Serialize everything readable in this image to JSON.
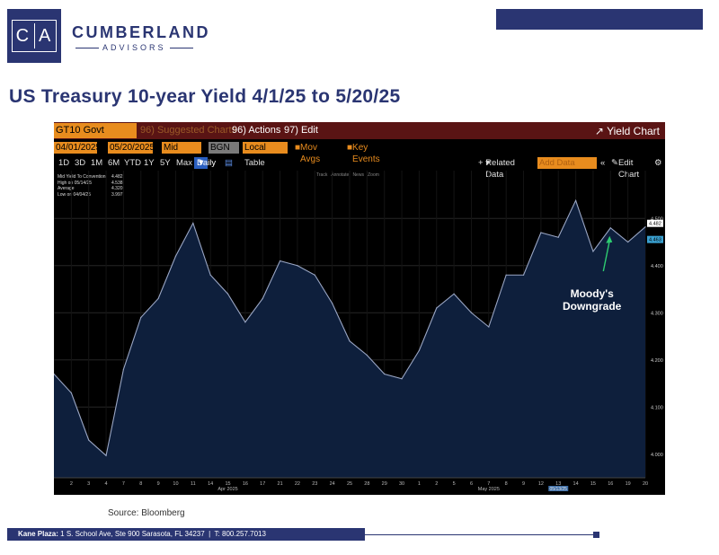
{
  "logo": {
    "left": "C",
    "right": "A"
  },
  "brand": {
    "name": "CUMBERLAND",
    "sub": "ADVISORS"
  },
  "title": "US Treasury 10-year Yield 4/1/25 to 5/20/25",
  "terminal": {
    "ticker": "GT10 Govt",
    "suggested": "96) Suggested Charts",
    "actions": "96) Actions",
    "edit": "97) Edit",
    "yield_chart": "Yield Chart",
    "start_date": "04/01/2025",
    "end_date": "05/20/2025",
    "field": "Mid YTW",
    "source_field": "BGN",
    "ccy": "Local CCY",
    "mov_avgs": "Mov Avgs",
    "key_events": "Key Events",
    "periods": [
      "1D",
      "3D",
      "1M",
      "6M",
      "YTD",
      "1Y",
      "5Y",
      "Max"
    ],
    "frequency": "Daily",
    "table": "Table",
    "related": "Related Data",
    "add_data": "Add Data",
    "edit_chart": "Edit Chart",
    "tools": [
      "Track",
      "Annotate",
      "News",
      "Zoom"
    ],
    "legend": {
      "rows": [
        {
          "label": "Mid Yield To Convention",
          "value": "4.482"
        },
        {
          "label": "High on 05/14/25",
          "value": "4.538"
        },
        {
          "label": "Average",
          "value": "4.320"
        },
        {
          "label": "Low on 04/04/25",
          "value": "3.997"
        }
      ]
    },
    "price_tags": [
      "4.482",
      "4.463"
    ]
  },
  "chart_data": {
    "type": "area",
    "x": [
      "2025-04-01",
      "2025-04-02",
      "2025-04-03",
      "2025-04-04",
      "2025-04-07",
      "2025-04-08",
      "2025-04-09",
      "2025-04-10",
      "2025-04-11",
      "2025-04-14",
      "2025-04-15",
      "2025-04-16",
      "2025-04-17",
      "2025-04-21",
      "2025-04-22",
      "2025-04-23",
      "2025-04-24",
      "2025-04-25",
      "2025-04-28",
      "2025-04-29",
      "2025-04-30",
      "2025-05-01",
      "2025-05-02",
      "2025-05-05",
      "2025-05-06",
      "2025-05-07",
      "2025-05-08",
      "2025-05-09",
      "2025-05-12",
      "2025-05-13",
      "2025-05-14",
      "2025-05-15",
      "2025-05-16",
      "2025-05-19",
      "2025-05-20"
    ],
    "values": [
      4.17,
      4.13,
      4.03,
      3.997,
      4.18,
      4.29,
      4.33,
      4.42,
      4.49,
      4.38,
      4.34,
      4.28,
      4.33,
      4.41,
      4.4,
      4.38,
      4.32,
      4.24,
      4.21,
      4.17,
      4.16,
      4.22,
      4.31,
      4.34,
      4.3,
      4.27,
      4.38,
      4.38,
      4.47,
      4.46,
      4.538,
      4.43,
      4.48,
      4.45,
      4.482
    ],
    "xticks": [
      "2",
      "3",
      "4",
      "7",
      "8",
      "9",
      "10",
      "11",
      "14",
      "15",
      "16",
      "17",
      "21",
      "22",
      "23",
      "24",
      "25",
      "28",
      "29",
      "30",
      "1",
      "2",
      "5",
      "6",
      "7",
      "8",
      "9",
      "12",
      "13",
      "14",
      "15",
      "16",
      "19",
      "20"
    ],
    "xtick_values": [
      2,
      3,
      4,
      7,
      8,
      9,
      10,
      11,
      14,
      15,
      16,
      17,
      21,
      22,
      23,
      24,
      25,
      28,
      29,
      30,
      1,
      2,
      5,
      6,
      7,
      8,
      9,
      12,
      13,
      14,
      15,
      16,
      19,
      20
    ],
    "month_labels": [
      "Apr 2025",
      "May 2025"
    ],
    "highlight_tick": "05/13/25",
    "yticks": [
      "4.000",
      "4.100",
      "4.200",
      "4.300",
      "4.400",
      "4.500"
    ],
    "ylim": [
      3.95,
      4.59
    ],
    "annotation": {
      "line1": "Moody's",
      "line2": "Downgrade"
    },
    "colors": {
      "line": "#9aa6c4",
      "fill": "#0e1f3c",
      "arrow": "#2ecc71",
      "grid": "#1a1a1a"
    }
  },
  "source": "Source: Bloomberg",
  "footer": {
    "place": "Kane Plaza:",
    "address": "1 S. School Ave, Ste 900  Sarasota, FL 34237",
    "sep": "|",
    "phone": "T: 800.257.7013"
  }
}
